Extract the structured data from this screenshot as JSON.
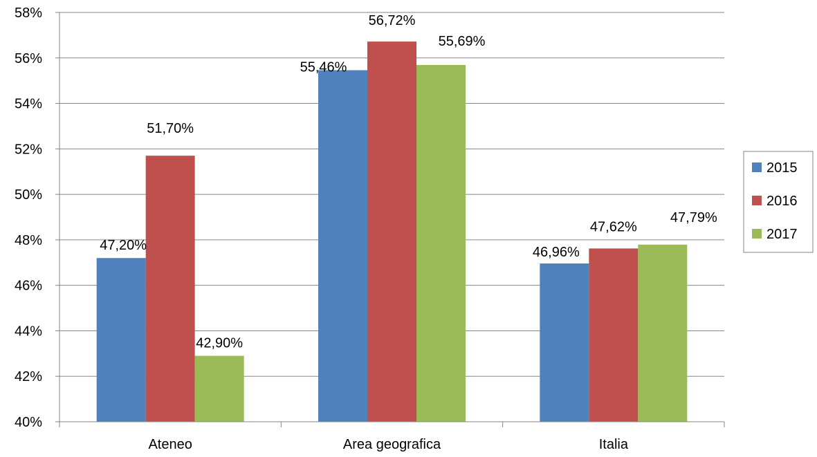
{
  "chart_data": {
    "type": "bar",
    "title": "",
    "xlabel": "",
    "ylabel": "",
    "categories": [
      "Ateneo",
      "Area geografica",
      "Italia"
    ],
    "series": [
      {
        "name": "2015",
        "color": "#4F81BD",
        "values": [
          47.2,
          55.46,
          46.96
        ],
        "labels": [
          "47,20%",
          "55,46%",
          "46,96%"
        ]
      },
      {
        "name": "2016",
        "color": "#C0504D",
        "values": [
          51.7,
          56.72,
          47.62
        ],
        "labels": [
          "51,70%",
          "56,72%",
          "47,62%"
        ]
      },
      {
        "name": "2017",
        "color": "#9BBB59",
        "values": [
          42.9,
          55.69,
          47.79
        ],
        "labels": [
          "42,90%",
          "55,69%",
          "47,79%"
        ]
      }
    ],
    "ylim": [
      40,
      58
    ],
    "yticks": [
      40,
      42,
      44,
      46,
      48,
      50,
      52,
      54,
      56,
      58
    ],
    "ytick_labels": [
      "40%",
      "42%",
      "44%",
      "46%",
      "48%",
      "50%",
      "52%",
      "54%",
      "56%",
      "58%"
    ],
    "grid": true,
    "grid_color": "#868686",
    "legend_position": "right"
  }
}
